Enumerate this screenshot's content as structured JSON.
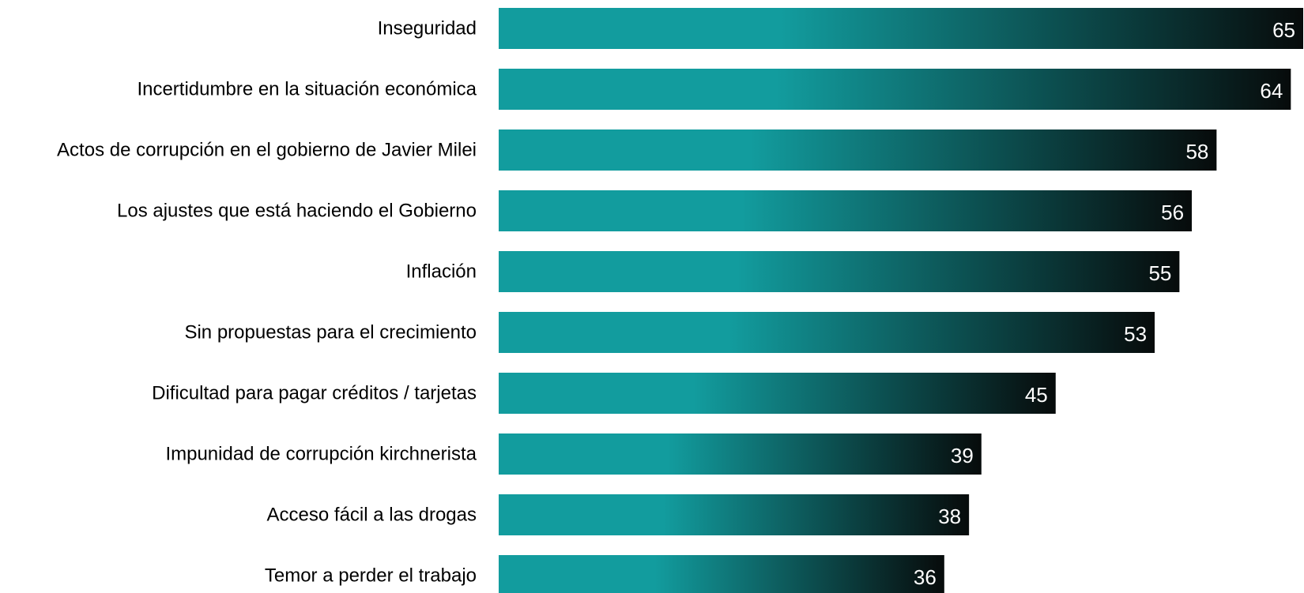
{
  "chart_data": {
    "type": "bar",
    "orientation": "horizontal",
    "categories": [
      "Inseguridad",
      "Incertidumbre en la situación económica",
      "Actos de corrupción en el gobierno de Javier Milei",
      "Los ajustes que está haciendo el Gobierno",
      "Inflación",
      "Sin propuestas para el crecimiento",
      "Dificultad para pagar créditos / tarjetas",
      "Impunidad de corrupción kirchnerista",
      "Acceso fácil a las drogas",
      "Temor a perder el trabajo"
    ],
    "values": [
      65,
      64,
      58,
      56,
      55,
      53,
      45,
      39,
      38,
      36
    ],
    "value_labels": [
      "65",
      "64",
      "58",
      "56",
      "55",
      "53",
      "45",
      "39",
      "38",
      "36"
    ],
    "title": "",
    "xlabel": "",
    "ylabel": "",
    "xlim": [
      0,
      65
    ],
    "grid": false,
    "legend": "none",
    "bar_gradient": {
      "start_color": "#129c9e",
      "end_color": "#070b0b"
    }
  }
}
